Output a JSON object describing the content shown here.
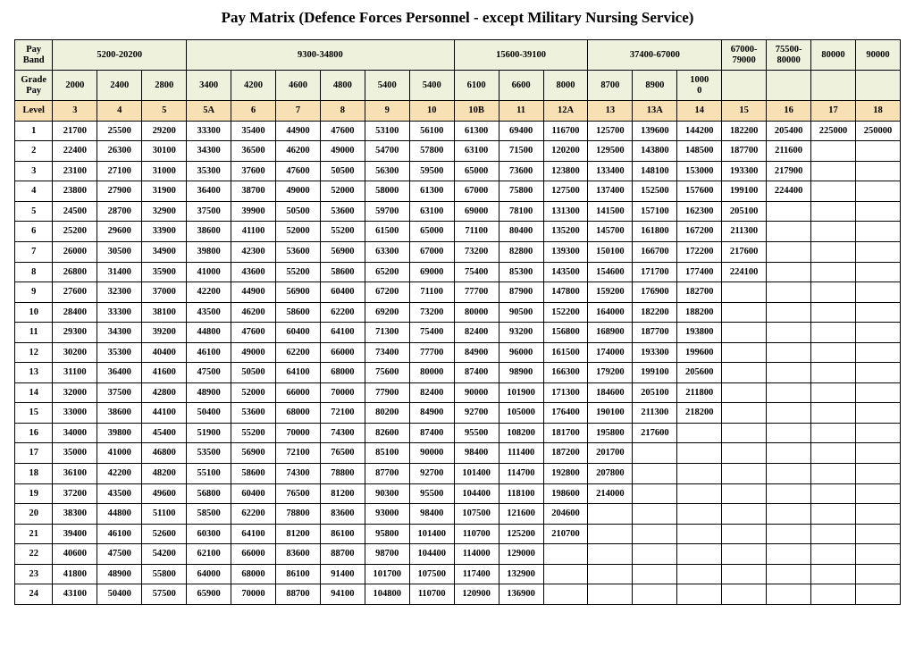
{
  "title": "Pay Matrix (Defence Forces Personnel - except Military Nursing Service)",
  "headers": {
    "payBandLabel": "Pay Band",
    "gradePayLabel": "Grade Pay",
    "levelLabel": "Level",
    "payBands": [
      {
        "label": "5200-20200",
        "span": 3
      },
      {
        "label": "9300-34800",
        "span": 6
      },
      {
        "label": "15600-39100",
        "span": 3
      },
      {
        "label": "37400-67000",
        "span": 3
      },
      {
        "label": "67000-79000",
        "span": 1
      },
      {
        "label": "75500-80000",
        "span": 1
      },
      {
        "label": "80000",
        "span": 1
      },
      {
        "label": "90000",
        "span": 1
      }
    ],
    "gradePays": [
      "2000",
      "2400",
      "2800",
      "3400",
      "4200",
      "4600",
      "4800",
      "5400",
      "5400",
      "6100",
      "6600",
      "8000",
      "8700",
      "8900",
      "10000",
      "",
      "",
      "",
      ""
    ],
    "gradePaySpecial": {
      "14": "1000\n0"
    },
    "levels": [
      "3",
      "4",
      "5",
      "5A",
      "6",
      "7",
      "8",
      "9",
      "10",
      "10B",
      "11",
      "12A",
      "13",
      "13A",
      "14",
      "15",
      "16",
      "17",
      "18"
    ]
  },
  "rows": [
    {
      "idx": "1",
      "c": [
        "21700",
        "25500",
        "29200",
        "33300",
        "35400",
        "44900",
        "47600",
        "53100",
        "56100",
        "61300",
        "69400",
        "116700",
        "125700",
        "139600",
        "144200",
        "182200",
        "205400",
        "225000",
        "250000"
      ]
    },
    {
      "idx": "2",
      "c": [
        "22400",
        "26300",
        "30100",
        "34300",
        "36500",
        "46200",
        "49000",
        "54700",
        "57800",
        "63100",
        "71500",
        "120200",
        "129500",
        "143800",
        "148500",
        "187700",
        "211600",
        "",
        ""
      ]
    },
    {
      "idx": "3",
      "c": [
        "23100",
        "27100",
        "31000",
        "35300",
        "37600",
        "47600",
        "50500",
        "56300",
        "59500",
        "65000",
        "73600",
        "123800",
        "133400",
        "148100",
        "153000",
        "193300",
        "217900",
        "",
        ""
      ]
    },
    {
      "idx": "4",
      "c": [
        "23800",
        "27900",
        "31900",
        "36400",
        "38700",
        "49000",
        "52000",
        "58000",
        "61300",
        "67000",
        "75800",
        "127500",
        "137400",
        "152500",
        "157600",
        "199100",
        "224400",
        "",
        ""
      ]
    },
    {
      "idx": "5",
      "c": [
        "24500",
        "28700",
        "32900",
        "37500",
        "39900",
        "50500",
        "53600",
        "59700",
        "63100",
        "69000",
        "78100",
        "131300",
        "141500",
        "157100",
        "162300",
        "205100",
        "",
        "",
        ""
      ]
    },
    {
      "idx": "6",
      "c": [
        "25200",
        "29600",
        "33900",
        "38600",
        "41100",
        "52000",
        "55200",
        "61500",
        "65000",
        "71100",
        "80400",
        "135200",
        "145700",
        "161800",
        "167200",
        "211300",
        "",
        "",
        ""
      ]
    },
    {
      "idx": "7",
      "c": [
        "26000",
        "30500",
        "34900",
        "39800",
        "42300",
        "53600",
        "56900",
        "63300",
        "67000",
        "73200",
        "82800",
        "139300",
        "150100",
        "166700",
        "172200",
        "217600",
        "",
        "",
        ""
      ]
    },
    {
      "idx": "8",
      "c": [
        "26800",
        "31400",
        "35900",
        "41000",
        "43600",
        "55200",
        "58600",
        "65200",
        "69000",
        "75400",
        "85300",
        "143500",
        "154600",
        "171700",
        "177400",
        "224100",
        "",
        "",
        ""
      ]
    },
    {
      "idx": "9",
      "c": [
        "27600",
        "32300",
        "37000",
        "42200",
        "44900",
        "56900",
        "60400",
        "67200",
        "71100",
        "77700",
        "87900",
        "147800",
        "159200",
        "176900",
        "182700",
        "",
        "",
        "",
        ""
      ]
    },
    {
      "idx": "10",
      "c": [
        "28400",
        "33300",
        "38100",
        "43500",
        "46200",
        "58600",
        "62200",
        "69200",
        "73200",
        "80000",
        "90500",
        "152200",
        "164000",
        "182200",
        "188200",
        "",
        "",
        "",
        ""
      ]
    },
    {
      "idx": "11",
      "c": [
        "29300",
        "34300",
        "39200",
        "44800",
        "47600",
        "60400",
        "64100",
        "71300",
        "75400",
        "82400",
        "93200",
        "156800",
        "168900",
        "187700",
        "193800",
        "",
        "",
        "",
        ""
      ]
    },
    {
      "idx": "12",
      "c": [
        "30200",
        "35300",
        "40400",
        "46100",
        "49000",
        "62200",
        "66000",
        "73400",
        "77700",
        "84900",
        "96000",
        "161500",
        "174000",
        "193300",
        "199600",
        "",
        "",
        "",
        ""
      ]
    },
    {
      "idx": "13",
      "c": [
        "31100",
        "36400",
        "41600",
        "47500",
        "50500",
        "64100",
        "68000",
        "75600",
        "80000",
        "87400",
        "98900",
        "166300",
        "179200",
        "199100",
        "205600",
        "",
        "",
        "",
        ""
      ]
    },
    {
      "idx": "14",
      "c": [
        "32000",
        "37500",
        "42800",
        "48900",
        "52000",
        "66000",
        "70000",
        "77900",
        "82400",
        "90000",
        "101900",
        "171300",
        "184600",
        "205100",
        "211800",
        "",
        "",
        "",
        ""
      ]
    },
    {
      "idx": "15",
      "c": [
        "33000",
        "38600",
        "44100",
        "50400",
        "53600",
        "68000",
        "72100",
        "80200",
        "84900",
        "92700",
        "105000",
        "176400",
        "190100",
        "211300",
        "218200",
        "",
        "",
        "",
        ""
      ]
    },
    {
      "idx": "16",
      "c": [
        "34000",
        "39800",
        "45400",
        "51900",
        "55200",
        "70000",
        "74300",
        "82600",
        "87400",
        "95500",
        "108200",
        "181700",
        "195800",
        "217600",
        "",
        "",
        "",
        "",
        ""
      ]
    },
    {
      "idx": "17",
      "c": [
        "35000",
        "41000",
        "46800",
        "53500",
        "56900",
        "72100",
        "76500",
        "85100",
        "90000",
        "98400",
        "111400",
        "187200",
        "201700",
        "",
        "",
        "",
        "",
        "",
        ""
      ]
    },
    {
      "idx": "18",
      "c": [
        "36100",
        "42200",
        "48200",
        "55100",
        "58600",
        "74300",
        "78800",
        "87700",
        "92700",
        "101400",
        "114700",
        "192800",
        "207800",
        "",
        "",
        "",
        "",
        "",
        ""
      ]
    },
    {
      "idx": "19",
      "c": [
        "37200",
        "43500",
        "49600",
        "56800",
        "60400",
        "76500",
        "81200",
        "90300",
        "95500",
        "104400",
        "118100",
        "198600",
        "214000",
        "",
        "",
        "",
        "",
        "",
        ""
      ]
    },
    {
      "idx": "20",
      "c": [
        "38300",
        "44800",
        "51100",
        "58500",
        "62200",
        "78800",
        "83600",
        "93000",
        "98400",
        "107500",
        "121600",
        "204600",
        "",
        "",
        "",
        "",
        "",
        "",
        ""
      ]
    },
    {
      "idx": "21",
      "c": [
        "39400",
        "46100",
        "52600",
        "60300",
        "64100",
        "81200",
        "86100",
        "95800",
        "101400",
        "110700",
        "125200",
        "210700",
        "",
        "",
        "",
        "",
        "",
        "",
        ""
      ]
    },
    {
      "idx": "22",
      "c": [
        "40600",
        "47500",
        "54200",
        "62100",
        "66000",
        "83600",
        "88700",
        "98700",
        "104400",
        "114000",
        "129000",
        "",
        "",
        "",
        "",
        "",
        "",
        "",
        ""
      ]
    },
    {
      "idx": "23",
      "c": [
        "41800",
        "48900",
        "55800",
        "64000",
        "68000",
        "86100",
        "91400",
        "101700",
        "107500",
        "117400",
        "132900",
        "",
        "",
        "",
        "",
        "",
        "",
        "",
        ""
      ]
    },
    {
      "idx": "24",
      "c": [
        "43100",
        "50400",
        "57500",
        "65900",
        "70000",
        "88700",
        "94100",
        "104800",
        "110700",
        "120900",
        "136900",
        "",
        "",
        "",
        "",
        "",
        "",
        "",
        ""
      ]
    }
  ],
  "styling": {
    "headerBg": "#eef2dd",
    "levelBg": "#f7e0b4",
    "borderColor": "#000000",
    "fontFamily": "Times New Roman",
    "titleFontSize": 17,
    "cellFontSize": 10.5,
    "pageBg": "#ffffff"
  }
}
